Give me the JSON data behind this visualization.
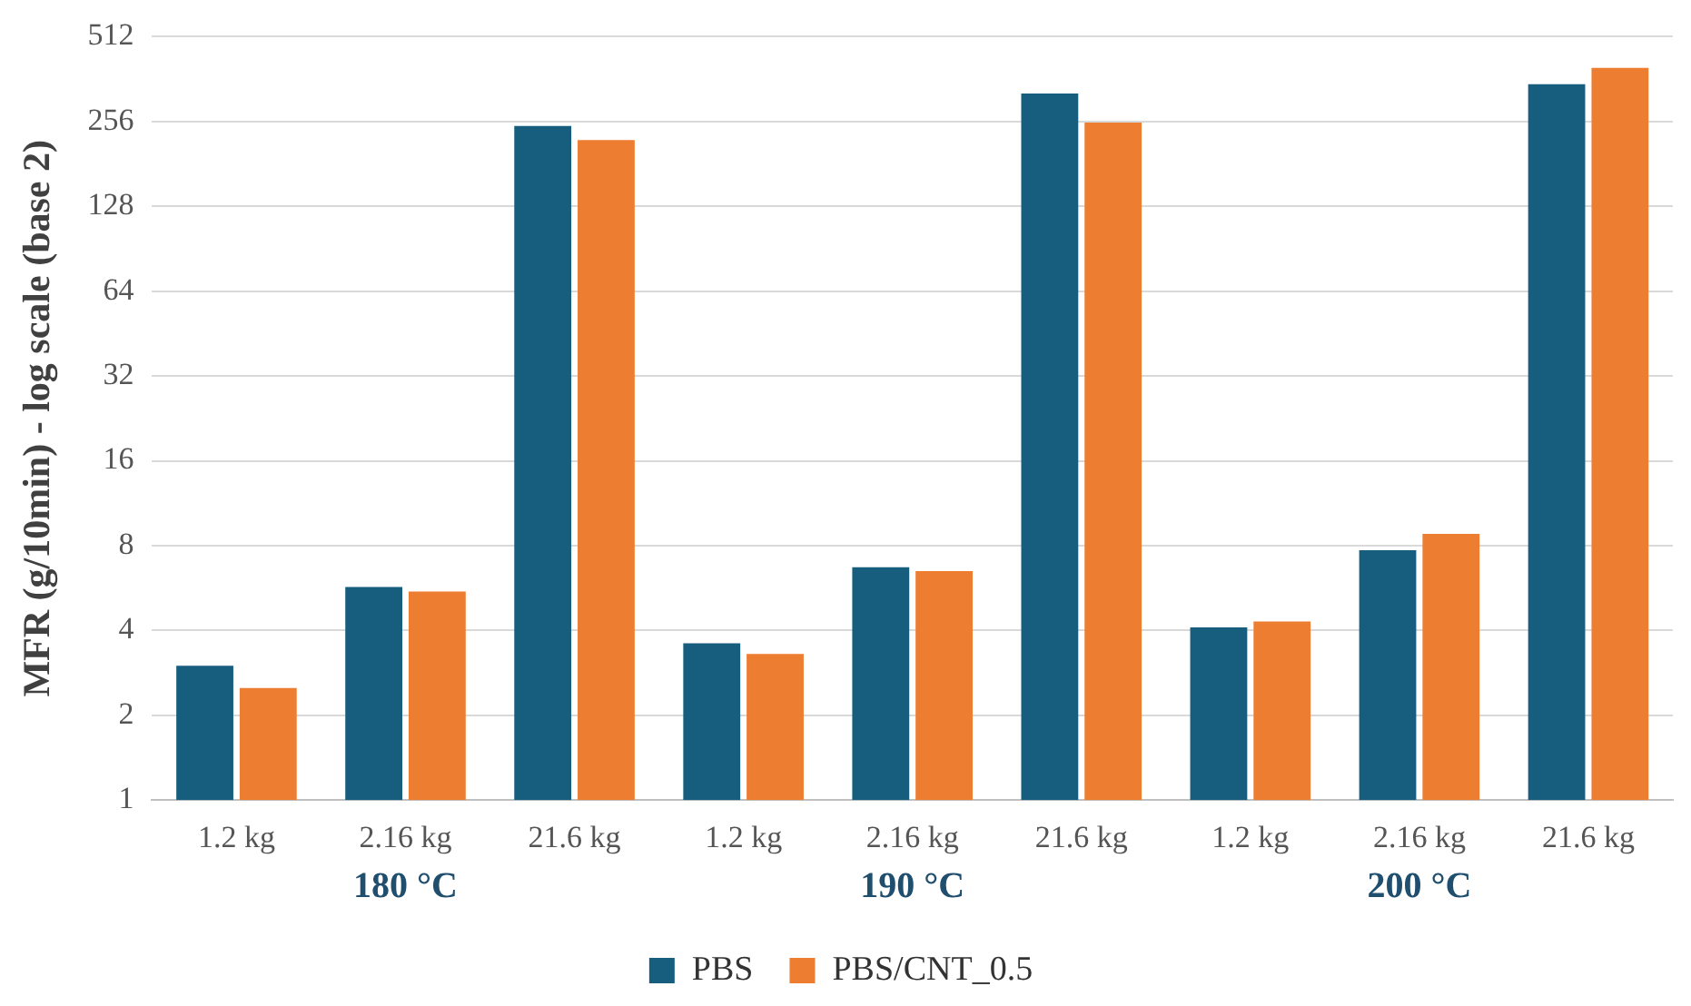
{
  "chart_data": {
    "type": "bar",
    "ylabel": "MFR (g/10min) - log scale (base 2)",
    "categories": [
      "1.2 kg",
      "2.16 kg",
      "21.6 kg",
      "1.2 kg",
      "2.16 kg",
      "21.6 kg",
      "1.2 kg",
      "2.16 kg",
      "21.6 kg"
    ],
    "series": [
      {
        "name": "PBS",
        "color": "#175e7e",
        "values": [
          3.0,
          5.7,
          247,
          3.6,
          6.7,
          322,
          4.1,
          7.7,
          347
        ]
      },
      {
        "name": "PBS/CNT_0.5",
        "color": "#ed7d31",
        "values": [
          2.5,
          5.5,
          220,
          3.3,
          6.5,
          254,
          4.3,
          8.8,
          397
        ]
      }
    ],
    "annotations": [
      "180 °C",
      "190 °C",
      "200 °C"
    ],
    "log": "y",
    "ylim": [
      1,
      512
    ],
    "yticks": [
      1,
      2,
      4,
      8,
      16,
      32,
      64,
      128,
      256,
      512
    ],
    "grid": "y",
    "legend": "bottom"
  }
}
